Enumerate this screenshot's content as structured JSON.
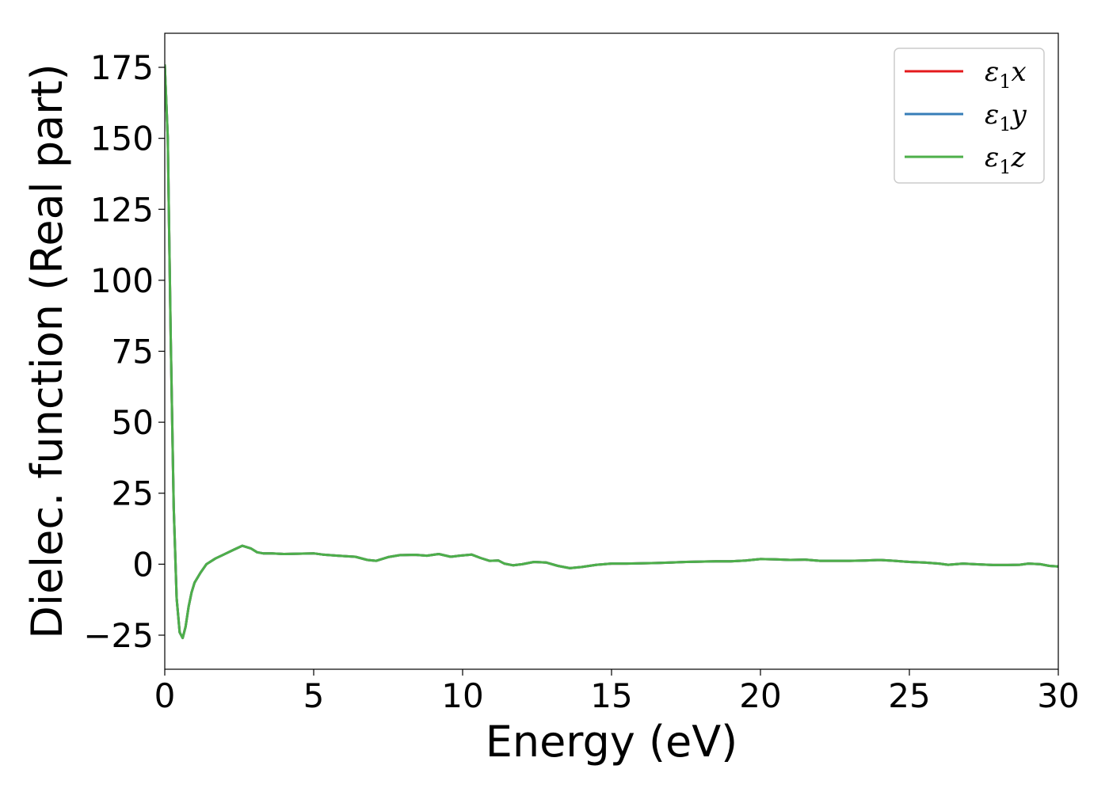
{
  "chart_data": {
    "type": "line",
    "xlabel": "Energy (eV)",
    "ylabel": "Dielec. function (Real part)",
    "xlim": [
      0,
      30
    ],
    "ylim": [
      -37,
      187
    ],
    "xticks": [
      0,
      5,
      10,
      15,
      20,
      25,
      30
    ],
    "xtick_labels": [
      "0",
      "5",
      "10",
      "15",
      "20",
      "25",
      "30"
    ],
    "yticks": [
      -25,
      0,
      25,
      50,
      75,
      100,
      125,
      150,
      175
    ],
    "ytick_labels": [
      "−25",
      "0",
      "25",
      "50",
      "75",
      "100",
      "125",
      "150",
      "175"
    ],
    "grid": false,
    "legend_position": "top-right",
    "x": [
      0.0,
      0.1,
      0.2,
      0.3,
      0.4,
      0.5,
      0.6,
      0.7,
      0.8,
      0.9,
      1.0,
      1.2,
      1.4,
      1.7,
      2.0,
      2.3,
      2.6,
      2.9,
      3.1,
      3.3,
      3.6,
      4.0,
      4.5,
      5.0,
      5.3,
      5.8,
      6.4,
      6.8,
      7.1,
      7.5,
      7.9,
      8.4,
      8.8,
      9.2,
      9.6,
      9.9,
      10.3,
      10.6,
      10.9,
      11.2,
      11.4,
      11.7,
      12.0,
      12.4,
      12.8,
      13.2,
      13.6,
      14.0,
      14.5,
      15.0,
      15.5,
      16.0,
      16.5,
      17.0,
      17.5,
      18.0,
      18.5,
      19.0,
      19.5,
      20.0,
      20.5,
      21.0,
      21.5,
      22.0,
      22.5,
      23.0,
      23.5,
      24.0,
      24.5,
      25.0,
      25.5,
      26.0,
      26.3,
      26.8,
      27.2,
      27.8,
      28.3,
      28.7,
      29.0,
      29.4,
      29.7,
      30.0
    ],
    "series": [
      {
        "name": "ε₁x",
        "color": "#e41a1c",
        "values": [
          176,
          150,
          80,
          20,
          -12,
          -24,
          -26,
          -22,
          -15,
          -10,
          -6.5,
          -3,
          0,
          2,
          3.5,
          5,
          6.5,
          5.5,
          4.2,
          3.8,
          3.8,
          3.6,
          3.7,
          3.8,
          3.4,
          3.0,
          2.6,
          1.5,
          1.2,
          2.5,
          3.2,
          3.3,
          3.0,
          3.6,
          2.6,
          3.0,
          3.4,
          2.2,
          1.2,
          1.3,
          0.2,
          -0.4,
          0.0,
          0.8,
          0.6,
          -0.6,
          -1.4,
          -1.0,
          -0.2,
          0.2,
          0.2,
          0.3,
          0.4,
          0.6,
          0.8,
          0.9,
          1.0,
          1.0,
          1.3,
          1.8,
          1.7,
          1.5,
          1.6,
          1.2,
          1.2,
          1.2,
          1.3,
          1.5,
          1.2,
          0.8,
          0.6,
          0.2,
          -0.2,
          0.2,
          0.0,
          -0.3,
          -0.3,
          -0.2,
          0.2,
          0.0,
          -0.6,
          -0.8
        ]
      },
      {
        "name": "ε₁y",
        "color": "#377eb8",
        "values": [
          176,
          150,
          80,
          20,
          -12,
          -24,
          -26,
          -22,
          -15,
          -10,
          -6.5,
          -3,
          0,
          2,
          3.5,
          5,
          6.5,
          5.5,
          4.2,
          3.8,
          3.8,
          3.6,
          3.7,
          3.8,
          3.4,
          3.0,
          2.6,
          1.5,
          1.2,
          2.5,
          3.2,
          3.3,
          3.0,
          3.6,
          2.6,
          3.0,
          3.4,
          2.2,
          1.2,
          1.3,
          0.2,
          -0.4,
          0.0,
          0.8,
          0.6,
          -0.6,
          -1.4,
          -1.0,
          -0.2,
          0.2,
          0.2,
          0.3,
          0.4,
          0.6,
          0.8,
          0.9,
          1.0,
          1.0,
          1.3,
          1.8,
          1.7,
          1.5,
          1.6,
          1.2,
          1.2,
          1.2,
          1.3,
          1.5,
          1.2,
          0.8,
          0.6,
          0.2,
          -0.2,
          0.2,
          0.0,
          -0.3,
          -0.3,
          -0.2,
          0.2,
          0.0,
          -0.6,
          -0.8
        ]
      },
      {
        "name": "ε₁z",
        "color": "#4daf4a",
        "values": [
          176,
          150,
          80,
          20,
          -12,
          -24,
          -26,
          -22,
          -15,
          -10,
          -6.5,
          -3,
          0,
          2,
          3.5,
          5,
          6.5,
          5.5,
          4.2,
          3.8,
          3.8,
          3.6,
          3.7,
          3.8,
          3.4,
          3.0,
          2.6,
          1.5,
          1.2,
          2.5,
          3.2,
          3.3,
          3.0,
          3.6,
          2.6,
          3.0,
          3.4,
          2.2,
          1.2,
          1.3,
          0.2,
          -0.4,
          0.0,
          0.8,
          0.6,
          -0.6,
          -1.4,
          -1.0,
          -0.2,
          0.2,
          0.2,
          0.3,
          0.4,
          0.6,
          0.8,
          0.9,
          1.0,
          1.0,
          1.3,
          1.8,
          1.7,
          1.5,
          1.6,
          1.2,
          1.2,
          1.2,
          1.3,
          1.5,
          1.2,
          0.8,
          0.6,
          0.2,
          -0.2,
          0.2,
          0.0,
          -0.3,
          -0.3,
          -0.2,
          0.2,
          0.0,
          -0.6,
          -0.8
        ]
      }
    ],
    "legend": [
      {
        "base": "ε",
        "sub": "1",
        "axis": "x"
      },
      {
        "base": "ε",
        "sub": "1",
        "axis": "y"
      },
      {
        "base": "ε",
        "sub": "1",
        "axis": "z"
      }
    ]
  }
}
